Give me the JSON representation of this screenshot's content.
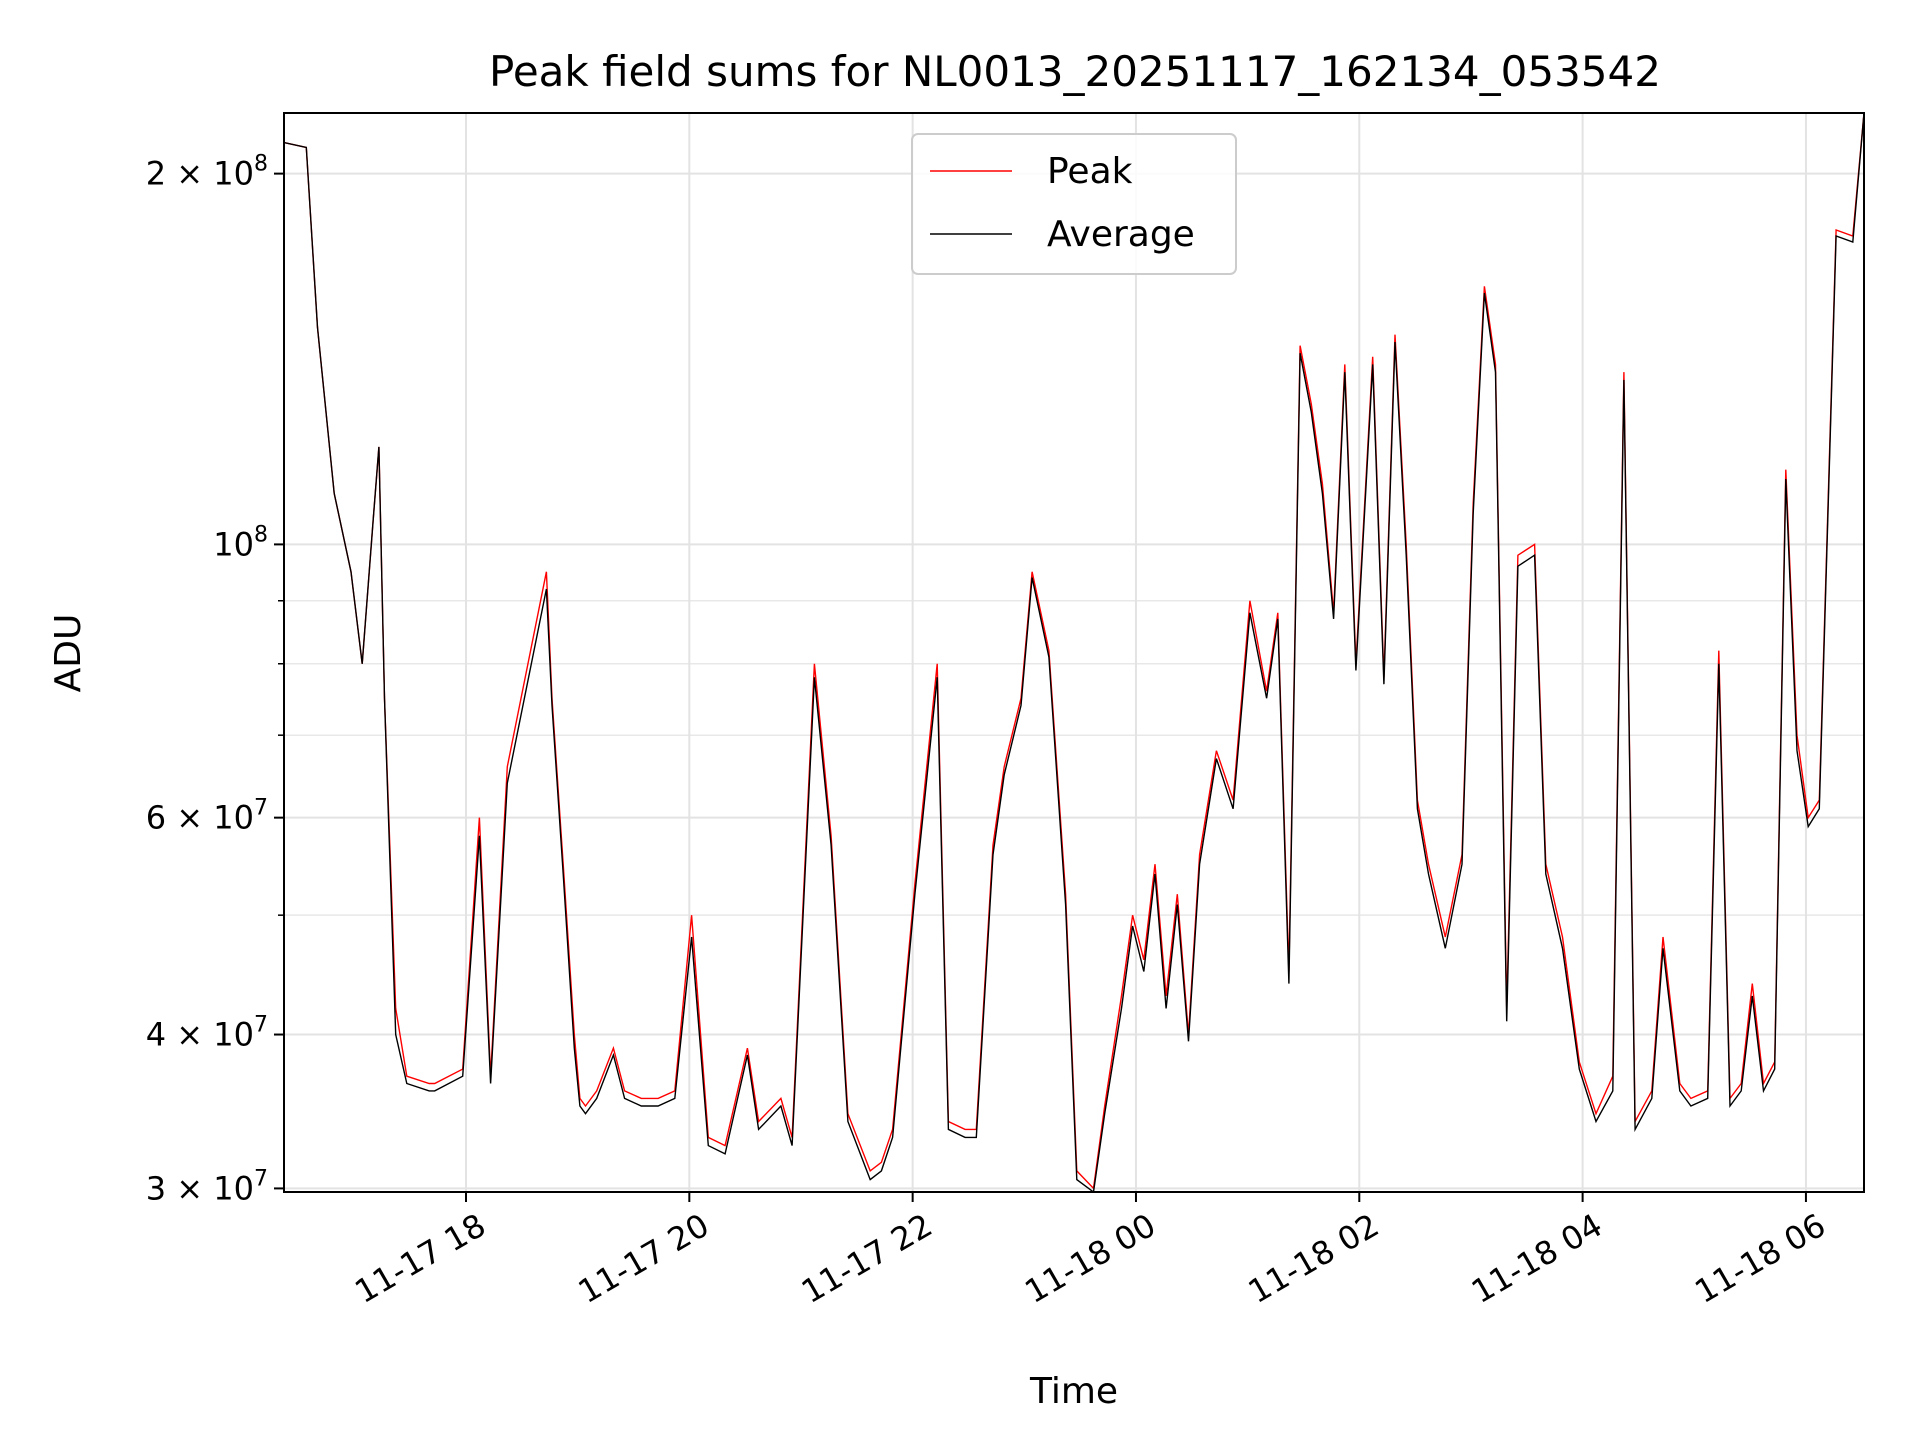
{
  "chart_data": {
    "type": "line",
    "title": "Peak field sums for NL0013_20251117_162134_053542",
    "xlabel": "Time",
    "ylabel": "ADU",
    "yscale": "log",
    "ylim": [
      29800000,
      224000000
    ],
    "x_units": "hours since 11-17 16:22",
    "xlim": [
      0,
      14.15
    ],
    "grid": true,
    "legend_position": "top-center",
    "x_ticks": [
      {
        "x": 1.63,
        "label": "11-17 18"
      },
      {
        "x": 3.63,
        "label": "11-17 20"
      },
      {
        "x": 5.63,
        "label": "11-17 22"
      },
      {
        "x": 7.63,
        "label": "11-18 00"
      },
      {
        "x": 9.63,
        "label": "11-18 02"
      },
      {
        "x": 11.63,
        "label": "11-18 04"
      },
      {
        "x": 13.63,
        "label": "11-18 06"
      }
    ],
    "y_ticks": [
      {
        "value": 30000000,
        "label": "3 × 10^7",
        "mantissa": "3",
        "exp": "7"
      },
      {
        "value": 40000000,
        "label": "4 × 10^7",
        "mantissa": "4",
        "exp": "7"
      },
      {
        "value": 60000000,
        "label": "6 × 10^7",
        "mantissa": "6",
        "exp": "7"
      },
      {
        "value": 100000000,
        "label": "10^8",
        "mantissa": "",
        "exp": "8"
      },
      {
        "value": 200000000,
        "label": "2 × 10^8",
        "mantissa": "2",
        "exp": "8"
      }
    ],
    "y_minor_ticks": [
      50000000,
      70000000,
      80000000,
      90000000
    ],
    "series": [
      {
        "name": "Peak",
        "color": "#ff0000",
        "x": [
          0,
          0.2,
          0.3,
          0.45,
          0.6,
          0.7,
          0.8,
          0.85,
          0.9,
          1.0,
          1.1,
          1.3,
          1.3,
          1.35,
          1.6,
          1.75,
          1.85,
          2.0,
          2.35,
          2.4,
          2.5,
          2.6,
          2.65,
          2.7,
          2.8,
          2.95,
          3.05,
          3.2,
          3.35,
          3.5,
          3.65,
          3.8,
          3.95,
          4.15,
          4.25,
          4.45,
          4.55,
          4.75,
          4.9,
          5.05,
          5.25,
          5.35,
          5.45,
          5.65,
          5.85,
          5.95,
          6.1,
          6.2,
          6.35,
          6.45,
          6.6,
          6.7,
          6.85,
          7.0,
          7.1,
          7.25,
          7.35,
          7.5,
          7.6,
          7.7,
          7.8,
          7.9,
          8.0,
          8.1,
          8.2,
          8.35,
          8.5,
          8.65,
          8.8,
          8.9,
          9.0,
          9.1,
          9.2,
          9.3,
          9.4,
          9.5,
          9.6,
          9.75,
          9.85,
          9.95,
          10.05,
          10.15,
          10.25,
          10.4,
          10.55,
          10.65,
          10.75,
          10.85,
          10.95,
          11.05,
          11.2,
          11.3,
          11.45,
          11.6,
          11.75,
          11.9,
          12.0,
          12.1,
          12.25,
          12.35,
          12.5,
          12.6,
          12.75,
          12.85,
          12.95,
          13.05,
          13.15,
          13.25,
          13.35,
          13.45,
          13.55,
          13.65,
          13.75,
          13.9,
          14.05,
          14.15
        ],
        "y": [
          212000000,
          210000000,
          150000000,
          110000000,
          95000000,
          80000000,
          105000000,
          120000000,
          75000000,
          42000000,
          37000000,
          36500000,
          36500000,
          36500000,
          37500000,
          60000000,
          37000000,
          66000000,
          95000000,
          75000000,
          55000000,
          40000000,
          35500000,
          35000000,
          36000000,
          39000000,
          36000000,
          35500000,
          35500000,
          36000000,
          50000000,
          33000000,
          32500000,
          39000000,
          34000000,
          35500000,
          33000000,
          80000000,
          58000000,
          34500000,
          31000000,
          31500000,
          33500000,
          53000000,
          80000000,
          34000000,
          33500000,
          33500000,
          57000000,
          66000000,
          75000000,
          95000000,
          82000000,
          52000000,
          31000000,
          30000000,
          35000000,
          43000000,
          50000000,
          46000000,
          55000000,
          43000000,
          52000000,
          40000000,
          56000000,
          68000000,
          62000000,
          90000000,
          76000000,
          88000000,
          45000000,
          145000000,
          130000000,
          112000000,
          88000000,
          140000000,
          80000000,
          142000000,
          78000000,
          148000000,
          100000000,
          62000000,
          55000000,
          48000000,
          56000000,
          108000000,
          162000000,
          140000000,
          42000000,
          98000000,
          100000000,
          55000000,
          48000000,
          38000000,
          34500000,
          37000000,
          138000000,
          34000000,
          36000000,
          48000000,
          36500000,
          35500000,
          36000000,
          82000000,
          35500000,
          36500000,
          44000000,
          36500000,
          38000000,
          115000000,
          70000000,
          60000000,
          62000000,
          180000000,
          178000000,
          224000000
        ]
      },
      {
        "name": "Average",
        "color": "#000000",
        "x": [
          0,
          0.2,
          0.3,
          0.45,
          0.6,
          0.7,
          0.8,
          0.85,
          0.9,
          1.0,
          1.1,
          1.3,
          1.35,
          1.6,
          1.75,
          1.85,
          2.0,
          2.35,
          2.4,
          2.5,
          2.6,
          2.65,
          2.7,
          2.8,
          2.95,
          3.05,
          3.2,
          3.35,
          3.5,
          3.65,
          3.8,
          3.95,
          4.15,
          4.25,
          4.45,
          4.55,
          4.75,
          4.9,
          5.05,
          5.25,
          5.35,
          5.45,
          5.65,
          5.85,
          5.95,
          6.1,
          6.2,
          6.35,
          6.45,
          6.6,
          6.7,
          6.85,
          7.0,
          7.1,
          7.25,
          7.35,
          7.5,
          7.6,
          7.7,
          7.8,
          7.9,
          8.0,
          8.1,
          8.2,
          8.35,
          8.5,
          8.65,
          8.8,
          8.9,
          9.0,
          9.1,
          9.2,
          9.3,
          9.4,
          9.5,
          9.6,
          9.75,
          9.85,
          9.95,
          10.05,
          10.15,
          10.25,
          10.4,
          10.55,
          10.65,
          10.75,
          10.85,
          10.95,
          11.05,
          11.2,
          11.3,
          11.45,
          11.6,
          11.75,
          11.9,
          12.0,
          12.1,
          12.25,
          12.35,
          12.5,
          12.6,
          12.75,
          12.85,
          12.95,
          13.05,
          13.15,
          13.25,
          13.35,
          13.45,
          13.55,
          13.65,
          13.75,
          13.9,
          14.05,
          14.15
        ],
        "y": [
          212000000,
          210000000,
          150000000,
          110000000,
          95000000,
          80000000,
          105000000,
          120000000,
          75000000,
          40000000,
          36500000,
          36000000,
          36000000,
          37000000,
          58000000,
          36500000,
          64000000,
          92000000,
          74000000,
          54000000,
          39000000,
          35000000,
          34500000,
          35500000,
          38500000,
          35500000,
          35000000,
          35000000,
          35500000,
          48000000,
          32500000,
          32000000,
          38500000,
          33500000,
          35000000,
          32500000,
          78000000,
          57000000,
          34000000,
          30500000,
          31000000,
          33000000,
          52000000,
          78000000,
          33500000,
          33000000,
          33000000,
          56000000,
          65000000,
          74000000,
          94000000,
          81000000,
          51000000,
          30500000,
          29800000,
          34500000,
          42000000,
          49000000,
          45000000,
          54000000,
          42000000,
          51000000,
          39500000,
          55000000,
          67000000,
          61000000,
          88000000,
          75000000,
          87000000,
          44000000,
          143000000,
          128000000,
          110000000,
          87000000,
          138000000,
          79000000,
          140000000,
          77000000,
          146000000,
          98000000,
          61000000,
          54000000,
          47000000,
          55000000,
          106000000,
          160000000,
          138000000,
          41000000,
          96000000,
          98000000,
          54000000,
          47000000,
          37500000,
          34000000,
          36000000,
          136000000,
          33500000,
          35500000,
          47000000,
          36000000,
          35000000,
          35500000,
          80000000,
          35000000,
          36000000,
          43000000,
          36000000,
          37500000,
          113000000,
          68000000,
          59000000,
          61000000,
          178000000,
          176000000,
          224000000
        ]
      }
    ]
  }
}
